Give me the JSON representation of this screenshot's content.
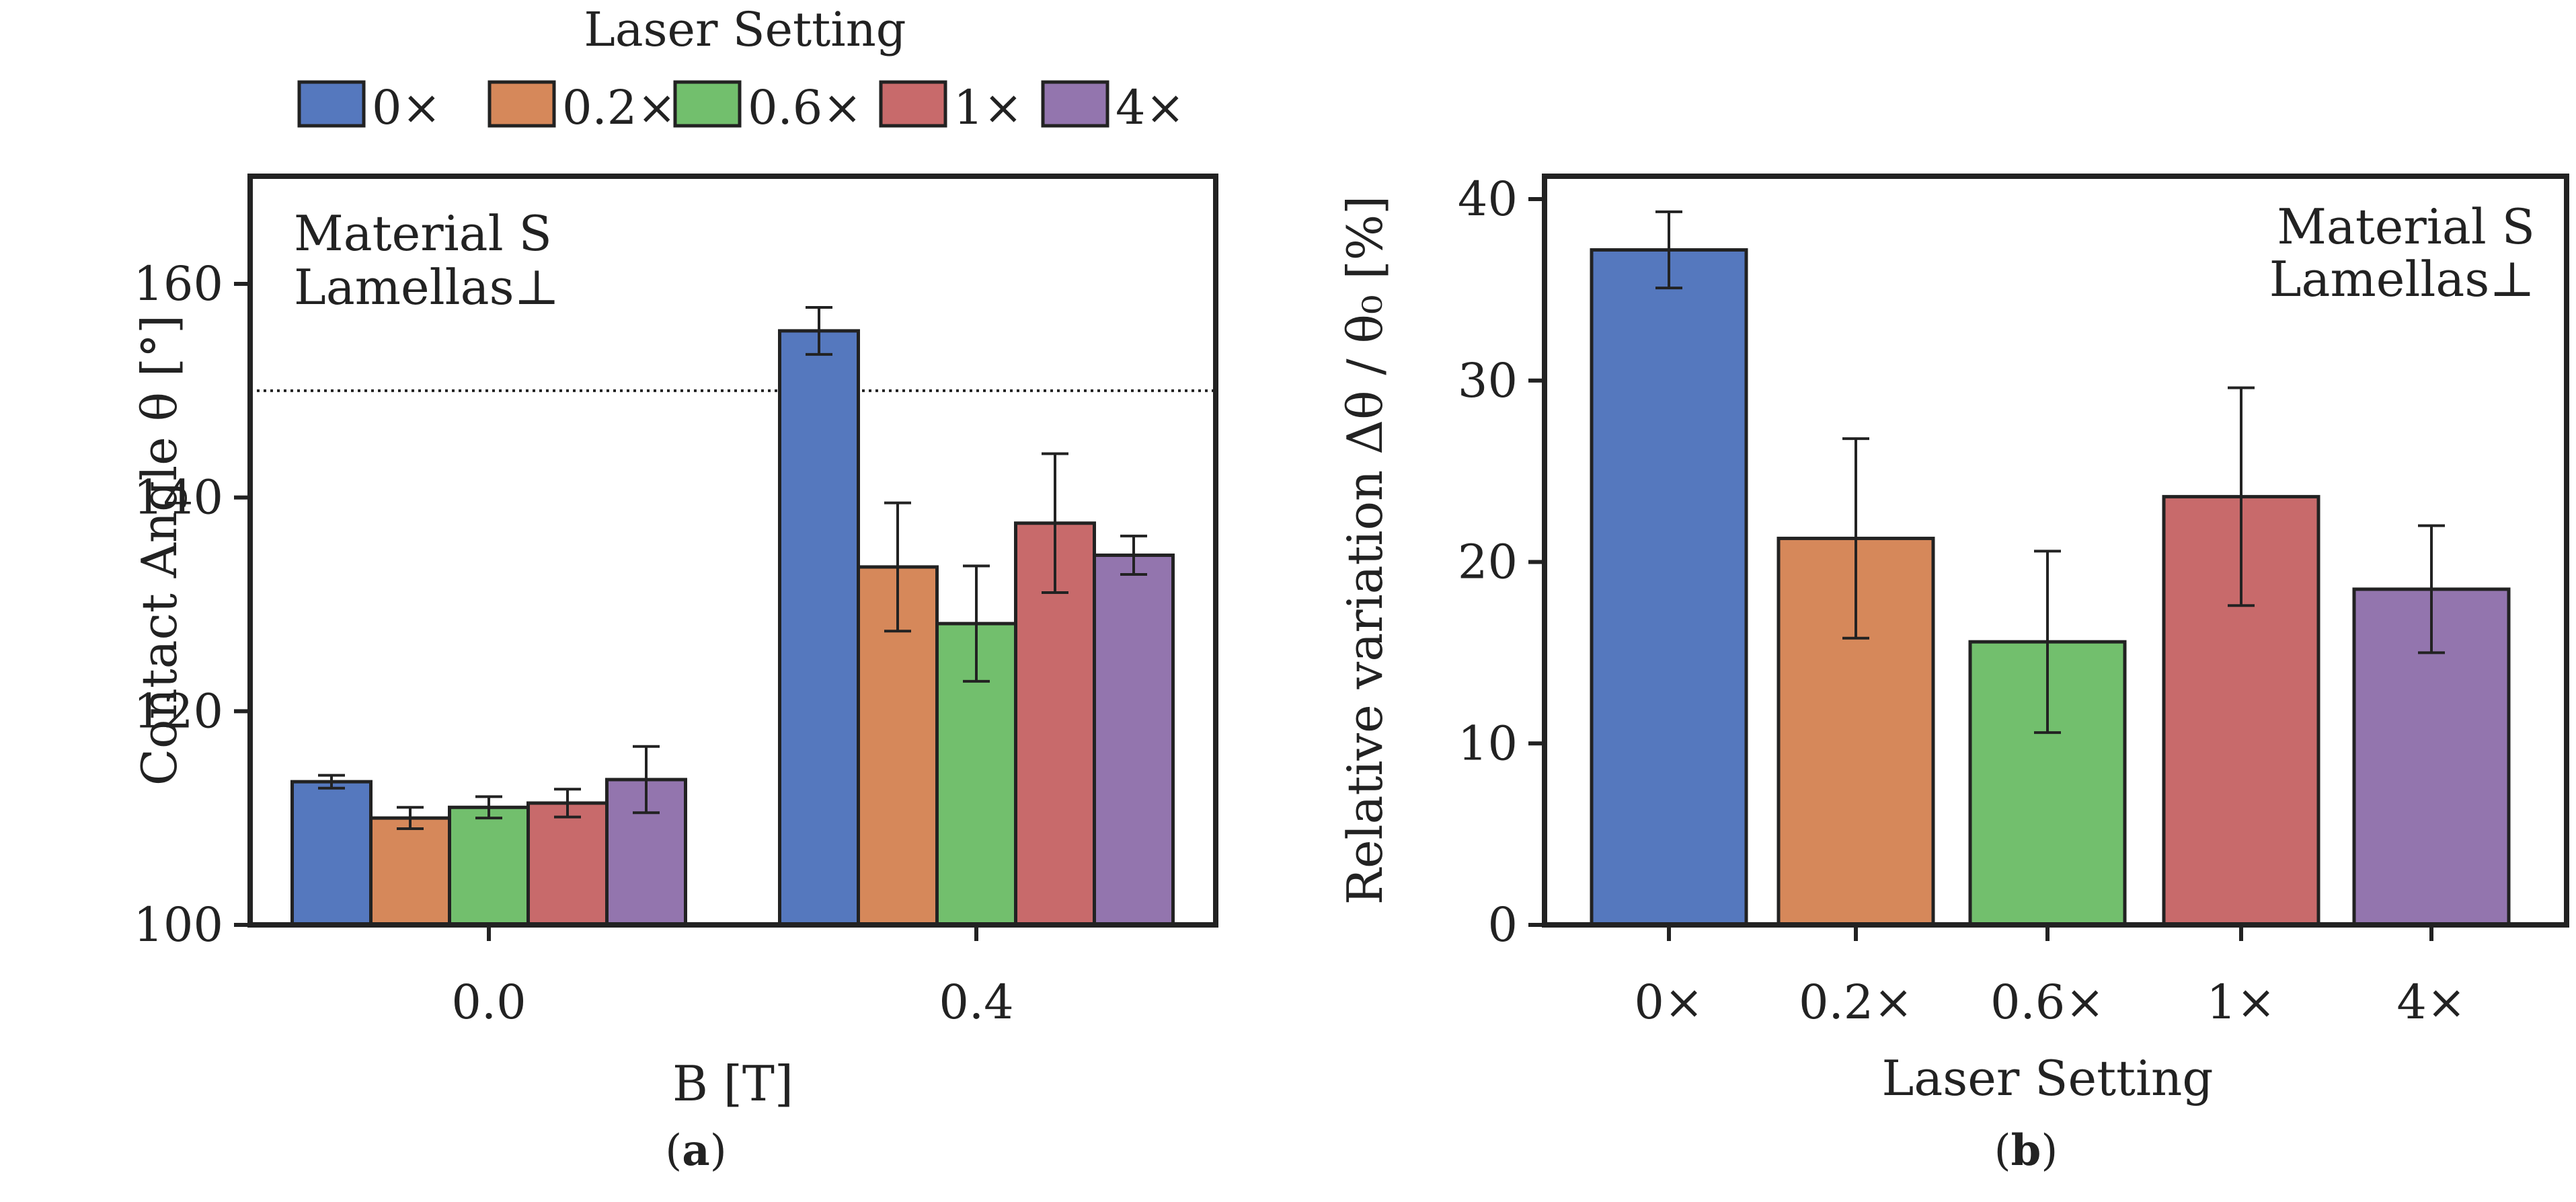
{
  "legend": {
    "title": "Laser Setting",
    "entries": [
      "0×",
      "0.2×",
      "0.6×",
      "1×",
      "4×"
    ],
    "colors": [
      "#5578be",
      "#d6885a",
      "#72bf6d",
      "#c86a6b",
      "#9375ae"
    ]
  },
  "chart_data": [
    {
      "type": "bar",
      "panel_label": "a",
      "title": "",
      "xlabel": "B [T]",
      "ylabel": "Contact Angle θ [°]",
      "ylim": [
        100,
        170
      ],
      "yticks": [
        100,
        120,
        140,
        160
      ],
      "categories": [
        "0.0",
        "0.4"
      ],
      "series": [
        {
          "name": "0×",
          "values": [
            113.4,
            155.6
          ],
          "errors": [
            0.6,
            2.2
          ]
        },
        {
          "name": "0.2×",
          "values": [
            110.0,
            133.5
          ],
          "errors": [
            1.0,
            6.0
          ]
        },
        {
          "name": "0.6×",
          "values": [
            111.0,
            128.2
          ],
          "errors": [
            1.0,
            5.4
          ]
        },
        {
          "name": "1×",
          "values": [
            111.4,
            137.6
          ],
          "errors": [
            1.3,
            6.5
          ]
        },
        {
          "name": "4×",
          "values": [
            113.6,
            134.6
          ],
          "errors": [
            3.1,
            1.8
          ]
        }
      ],
      "reference_line": 150,
      "annotation": [
        "Material S",
        "Lamellas⊥"
      ],
      "annotation_position": "top-left",
      "legend_position": "top-outside"
    },
    {
      "type": "bar",
      "panel_label": "b",
      "title": "",
      "xlabel": "Laser Setting",
      "ylabel": "Relative variation Δθ / θ₀ [%]",
      "ylim": [
        0,
        41
      ],
      "yticks": [
        0,
        10,
        20,
        30,
        40
      ],
      "categories": [
        "0×",
        "0.2×",
        "0.6×",
        "1×",
        "4×"
      ],
      "values": [
        37.2,
        21.3,
        15.6,
        23.6,
        18.5
      ],
      "errors": [
        2.1,
        5.5,
        5.0,
        6.0,
        3.5
      ],
      "annotation": [
        "Material S",
        "Lamellas⊥"
      ],
      "annotation_position": "top-right"
    }
  ]
}
